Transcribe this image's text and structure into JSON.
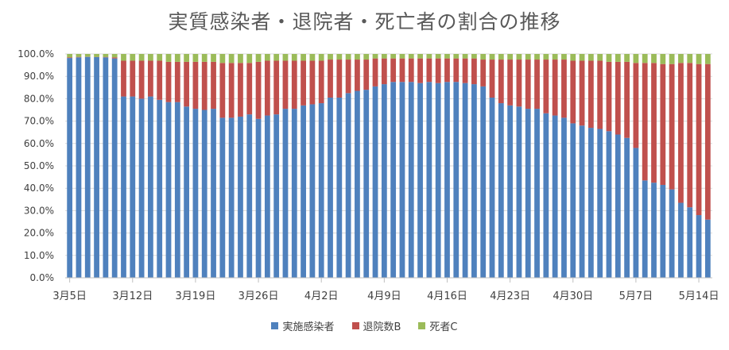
{
  "chart_data": {
    "type": "bar",
    "stacked": true,
    "title": "実質感染者・退院者・死亡者の割合の推移",
    "ylim": [
      0,
      100
    ],
    "y_ticks": [
      "0.0%",
      "10.0%",
      "20.0%",
      "30.0%",
      "40.0%",
      "50.0%",
      "60.0%",
      "70.0%",
      "80.0%",
      "90.0%",
      "100.0%"
    ],
    "x_tick_labels": [
      {
        "day_index": 0,
        "label": "3月5日"
      },
      {
        "day_index": 7,
        "label": "3月12日"
      },
      {
        "day_index": 14,
        "label": "3月19日"
      },
      {
        "day_index": 21,
        "label": "3月26日"
      },
      {
        "day_index": 28,
        "label": "4月2日"
      },
      {
        "day_index": 35,
        "label": "4月9日"
      },
      {
        "day_index": 42,
        "label": "4月16日"
      },
      {
        "day_index": 49,
        "label": "4月23日"
      },
      {
        "day_index": 56,
        "label": "4月30日"
      },
      {
        "day_index": 63,
        "label": "5月7日"
      },
      {
        "day_index": 70,
        "label": "5月14日"
      }
    ],
    "legend_position": "bottom",
    "grid": true,
    "series": [
      {
        "name": "実施感染者",
        "color": "#4F81BD",
        "values": [
          98.2,
          98.5,
          98.7,
          98.6,
          98.5,
          98.0,
          81.0,
          81.0,
          80.0,
          81.0,
          79.5,
          78.5,
          78.5,
          76.5,
          75.5,
          75.0,
          75.5,
          71.5,
          71.5,
          72.0,
          73.0,
          71.0,
          72.5,
          73.0,
          75.5,
          75.5,
          77.0,
          77.5,
          78.0,
          80.5,
          80.5,
          82.5,
          83.5,
          84.0,
          85.5,
          86.5,
          87.5,
          87.5,
          87.5,
          87.0,
          87.5,
          87.0,
          87.5,
          87.5,
          87.0,
          86.5,
          85.5,
          80.5,
          78.0,
          77.0,
          76.5,
          75.5,
          75.5,
          73.5,
          72.5,
          71.5,
          69.0,
          68.0,
          67.0,
          66.5,
          65.5,
          64.0,
          62.5,
          58.0,
          43.5,
          42.5,
          41.5,
          39.5,
          33.5,
          31.5,
          28.0,
          26.0
        ]
      },
      {
        "name": "退院数B",
        "color": "#C0504D",
        "values": [
          0.3,
          0.2,
          0.1,
          0.1,
          0.2,
          0.5,
          16.0,
          16.0,
          17.0,
          16.0,
          17.5,
          18.0,
          18.0,
          20.0,
          21.0,
          21.5,
          21.0,
          24.5,
          24.5,
          24.0,
          23.0,
          25.5,
          24.5,
          24.0,
          21.5,
          21.5,
          20.0,
          19.5,
          19.0,
          17.0,
          17.0,
          15.0,
          14.0,
          13.5,
          12.5,
          11.5,
          10.5,
          10.5,
          10.5,
          11.0,
          10.5,
          11.0,
          10.5,
          10.5,
          11.0,
          11.5,
          12.0,
          17.0,
          19.5,
          20.5,
          21.0,
          22.0,
          22.0,
          24.0,
          25.0,
          26.0,
          28.0,
          29.0,
          30.0,
          30.5,
          31.0,
          32.5,
          34.0,
          38.0,
          52.5,
          53.5,
          54.0,
          56.0,
          62.5,
          64.5,
          67.5,
          69.5
        ]
      },
      {
        "name": "死者C",
        "color": "#9BBB59",
        "values": [
          1.5,
          1.3,
          1.2,
          1.3,
          1.3,
          1.5,
          3.0,
          3.0,
          3.0,
          3.0,
          3.0,
          3.5,
          3.5,
          3.5,
          3.5,
          3.5,
          3.5,
          4.0,
          4.0,
          4.0,
          4.0,
          3.5,
          3.0,
          3.0,
          3.0,
          3.0,
          3.0,
          3.0,
          3.0,
          2.5,
          2.5,
          2.5,
          2.5,
          2.5,
          2.0,
          2.0,
          2.0,
          2.0,
          2.0,
          2.0,
          2.0,
          2.0,
          2.0,
          2.0,
          2.0,
          2.0,
          2.5,
          2.5,
          2.5,
          2.5,
          2.5,
          2.5,
          2.5,
          2.5,
          2.5,
          2.5,
          3.0,
          3.0,
          3.0,
          3.0,
          3.5,
          3.5,
          3.5,
          4.0,
          4.0,
          4.0,
          4.5,
          4.5,
          4.0,
          4.0,
          4.5,
          4.5
        ]
      }
    ]
  }
}
